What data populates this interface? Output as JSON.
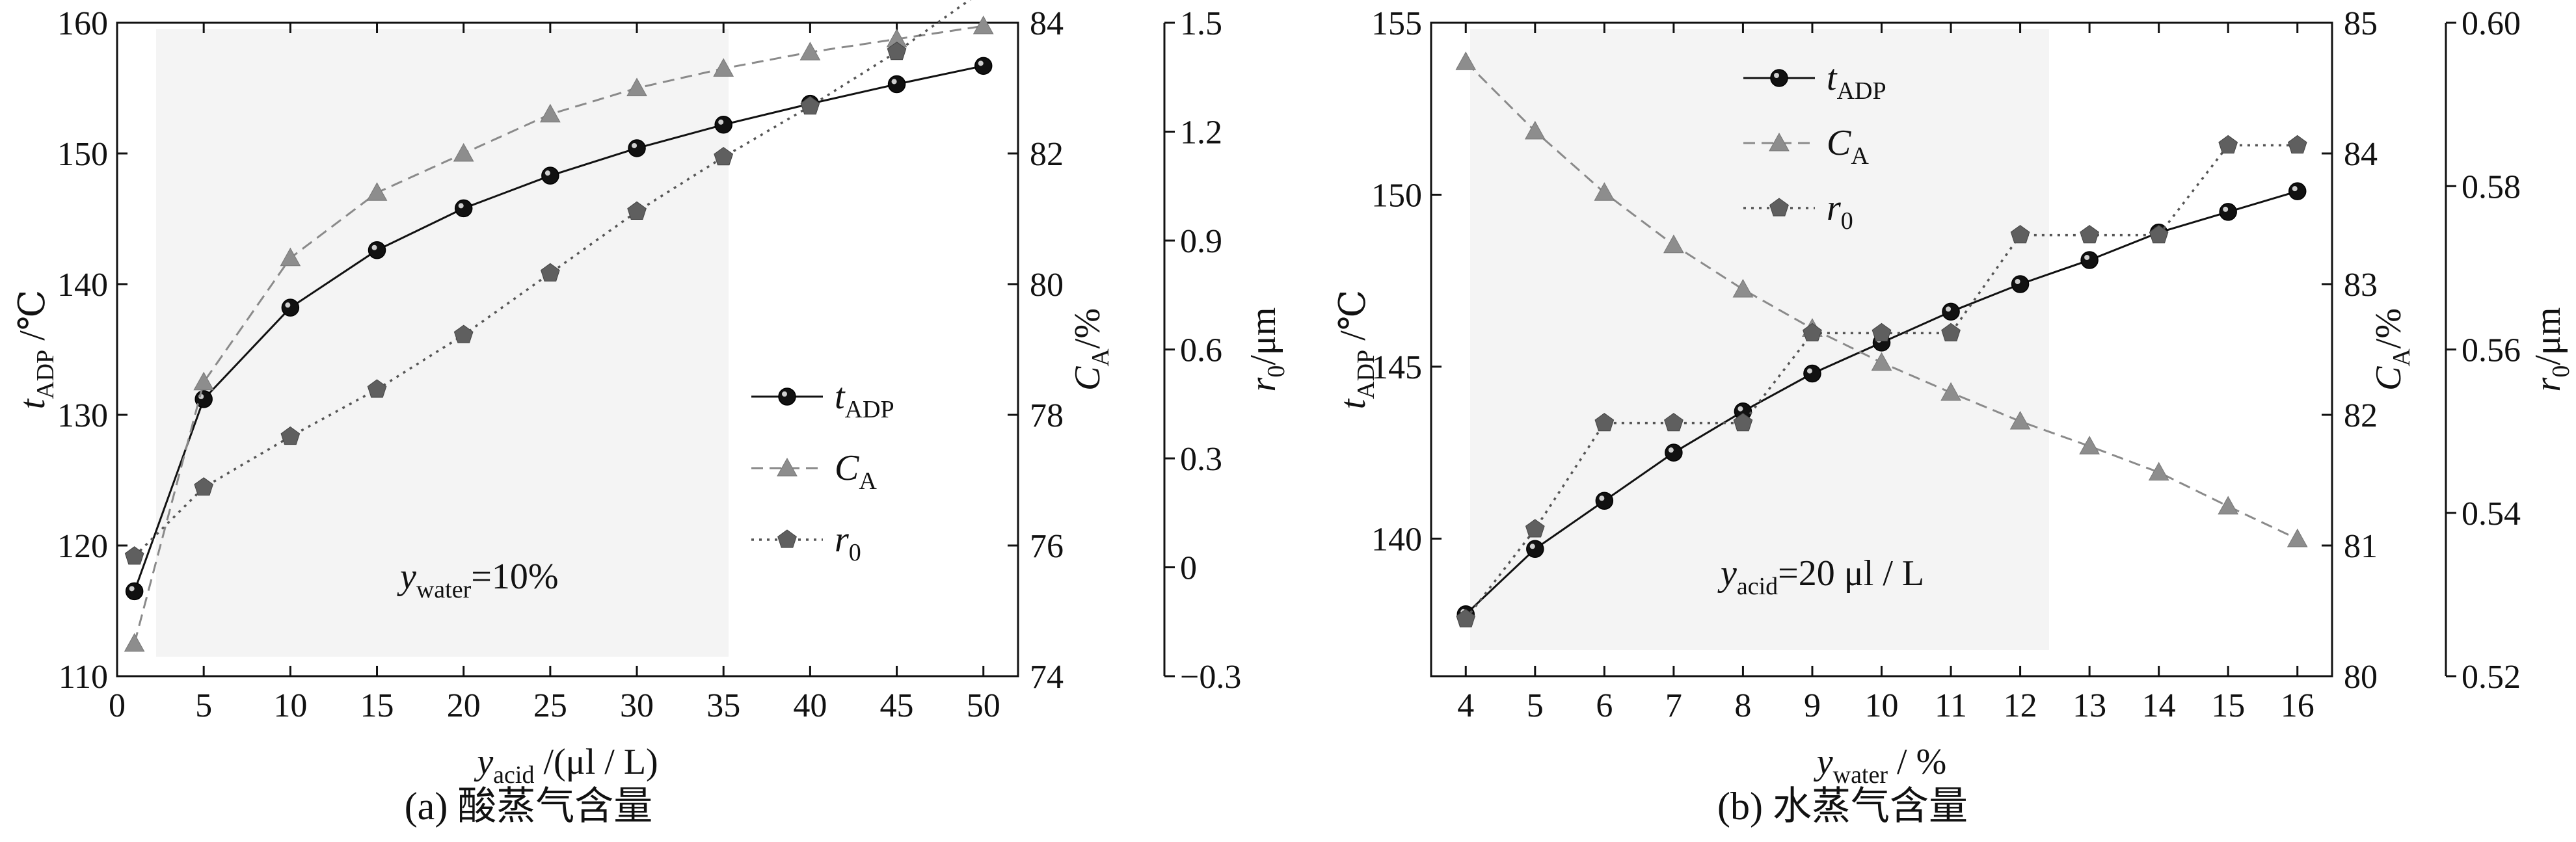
{
  "panels": [
    {
      "caption": "(a) 酸蒸气含量",
      "annotation": {
        "base": "y",
        "sub": "water",
        "rest": "=10%"
      },
      "xaxis": {
        "label_base": "y",
        "label_sub": "acid",
        "label_rest": " /(μl / L)",
        "lim": [
          0,
          52
        ],
        "ticks": [
          "0",
          "5",
          "10",
          "15",
          "20",
          "25",
          "30",
          "35",
          "40",
          "45",
          "50"
        ]
      },
      "y_left": {
        "label_base": "t",
        "label_sub": "ADP",
        "label_rest": " /℃",
        "lim": [
          110,
          160
        ],
        "ticks": [
          "110",
          "120",
          "130",
          "140",
          "150",
          "160"
        ]
      },
      "y_right1": {
        "label_base": "C",
        "label_sub": "A",
        "label_rest": "/%",
        "lim": [
          74,
          84
        ],
        "ticks": [
          "74",
          "76",
          "78",
          "80",
          "82",
          "84"
        ]
      },
      "y_right2": {
        "label_base": "r",
        "label_sub": "0",
        "label_rest": "/μm",
        "lim": [
          -0.3,
          1.5
        ],
        "ticks": [
          "−0.3",
          "0",
          "0.3",
          "0.6",
          "0.9",
          "1.2",
          "1.5"
        ]
      },
      "legend": [
        {
          "base": "t",
          "sub": "ADP",
          "marker": "circle",
          "dash": "solid"
        },
        {
          "base": "C",
          "sub": "A",
          "marker": "triangle",
          "dash": "dashed"
        },
        {
          "base": "r",
          "sub": "0",
          "marker": "pentagon",
          "dash": "dotted"
        }
      ]
    },
    {
      "caption": "(b) 水蒸气含量",
      "annotation": {
        "base": "y",
        "sub": "acid",
        "rest": "=20 μl / L"
      },
      "xaxis": {
        "label_base": "y",
        "label_sub": "water",
        "label_rest": " / %",
        "lim": [
          3.5,
          16.5
        ],
        "ticks": [
          "4",
          "5",
          "6",
          "7",
          "8",
          "9",
          "10",
          "11",
          "12",
          "13",
          "14",
          "15",
          "16"
        ]
      },
      "y_left": {
        "label_base": "t",
        "label_sub": "ADP",
        "label_rest": " /℃",
        "lim": [
          136,
          155
        ],
        "ticks": [
          "140",
          "145",
          "150",
          "155"
        ]
      },
      "y_right1": {
        "label_base": "C",
        "label_sub": "A",
        "label_rest": "/%",
        "lim": [
          80,
          85
        ],
        "ticks": [
          "80",
          "81",
          "82",
          "83",
          "84",
          "85"
        ]
      },
      "y_right2": {
        "label_base": "r",
        "label_sub": "0",
        "label_rest": "/μm",
        "lim": [
          0.52,
          0.6
        ],
        "ticks": [
          "0.52",
          "0.54",
          "0.56",
          "0.58",
          "0.60"
        ]
      },
      "legend": [
        {
          "base": "t",
          "sub": "ADP",
          "marker": "circle",
          "dash": "solid"
        },
        {
          "base": "C",
          "sub": "A",
          "marker": "triangle",
          "dash": "dashed"
        },
        {
          "base": "r",
          "sub": "0",
          "marker": "pentagon",
          "dash": "dotted"
        }
      ]
    }
  ],
  "chart_data": [
    {
      "type": "line",
      "x": [
        1,
        5,
        10,
        15,
        20,
        25,
        30,
        35,
        40,
        45,
        50
      ],
      "series": [
        {
          "name": "tADP",
          "axis": "left",
          "values": [
            116.5,
            131.2,
            138.2,
            142.6,
            145.8,
            148.3,
            150.4,
            152.2,
            153.8,
            155.3,
            156.7
          ]
        },
        {
          "name": "CA",
          "axis": "right1",
          "values": [
            74.5,
            78.5,
            80.4,
            81.4,
            82.0,
            82.6,
            83.0,
            83.3,
            83.55,
            83.75,
            83.95
          ]
        },
        {
          "name": "r0",
          "axis": "right2",
          "values": [
            0.03,
            0.22,
            0.36,
            0.49,
            0.64,
            0.81,
            0.98,
            1.13,
            1.27,
            1.42,
            1.59
          ]
        }
      ]
    },
    {
      "type": "line",
      "x": [
        4,
        5,
        6,
        7,
        8,
        9,
        10,
        11,
        12,
        13,
        14,
        15,
        16
      ],
      "series": [
        {
          "name": "tADP",
          "axis": "left",
          "values": [
            137.8,
            139.7,
            141.1,
            142.5,
            143.7,
            144.8,
            145.7,
            146.6,
            147.4,
            148.1,
            148.9,
            149.5,
            150.1
          ]
        },
        {
          "name": "CA",
          "axis": "right1",
          "values": [
            84.7,
            84.17,
            83.7,
            83.3,
            82.96,
            82.66,
            82.4,
            82.17,
            81.95,
            81.76,
            81.56,
            81.3,
            81.05
          ]
        },
        {
          "name": "r0",
          "axis": "right2",
          "values": [
            0.527,
            0.538,
            0.551,
            0.551,
            0.551,
            0.562,
            0.562,
            0.562,
            0.574,
            0.574,
            0.574,
            0.585,
            0.585
          ]
        }
      ]
    }
  ]
}
